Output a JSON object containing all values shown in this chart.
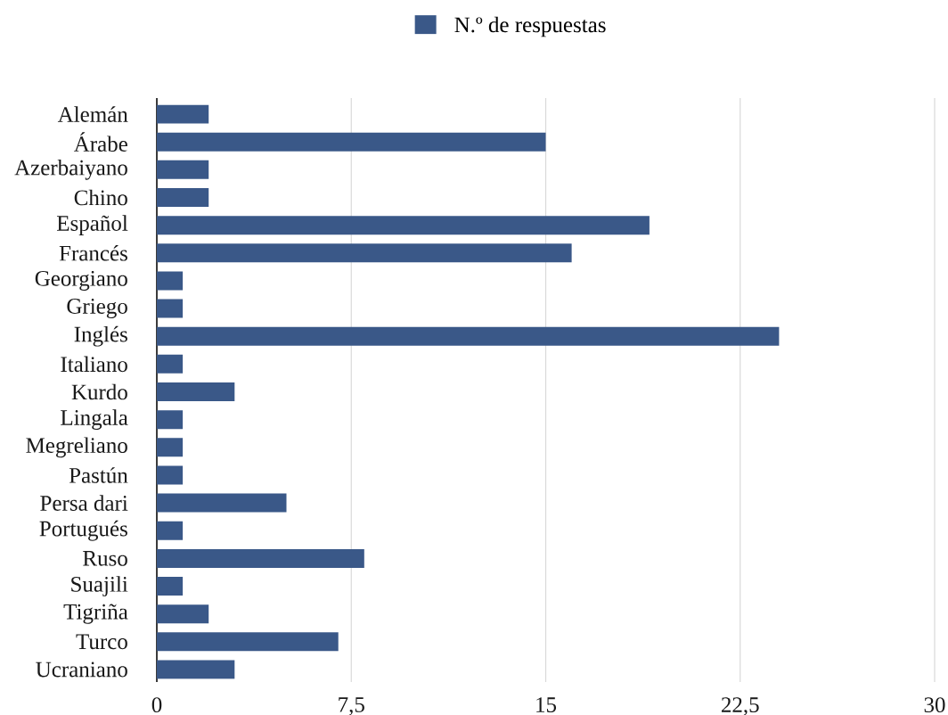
{
  "chart_data": {
    "type": "bar",
    "orientation": "horizontal",
    "categories": [
      "Alemán",
      "Árabe",
      "Azerbaiyano",
      "Chino",
      "Español",
      "Francés",
      "Georgiano",
      "Griego",
      "Inglés",
      "Italiano",
      "Kurdo",
      "Lingala",
      "Megreliano",
      "Pastún",
      "Persa dari",
      "Portugués",
      "Ruso",
      "Suajili",
      "Tigriña",
      "Turco",
      "Ucraniano"
    ],
    "series": [
      {
        "name": "N.º de respuestas",
        "color": "#3a5888",
        "values": [
          2,
          15,
          2,
          2,
          19,
          16,
          1,
          1,
          24,
          1,
          3,
          1,
          1,
          1,
          5,
          1,
          8,
          1,
          2,
          7,
          3
        ]
      }
    ],
    "xlim": [
      0,
      30
    ],
    "xticks": [
      0,
      {
        "value": 7.5,
        "label": "7,5"
      },
      15,
      {
        "value": 22.5,
        "label": "22,5"
      },
      30
    ],
    "grid": "x",
    "legend": "top"
  }
}
